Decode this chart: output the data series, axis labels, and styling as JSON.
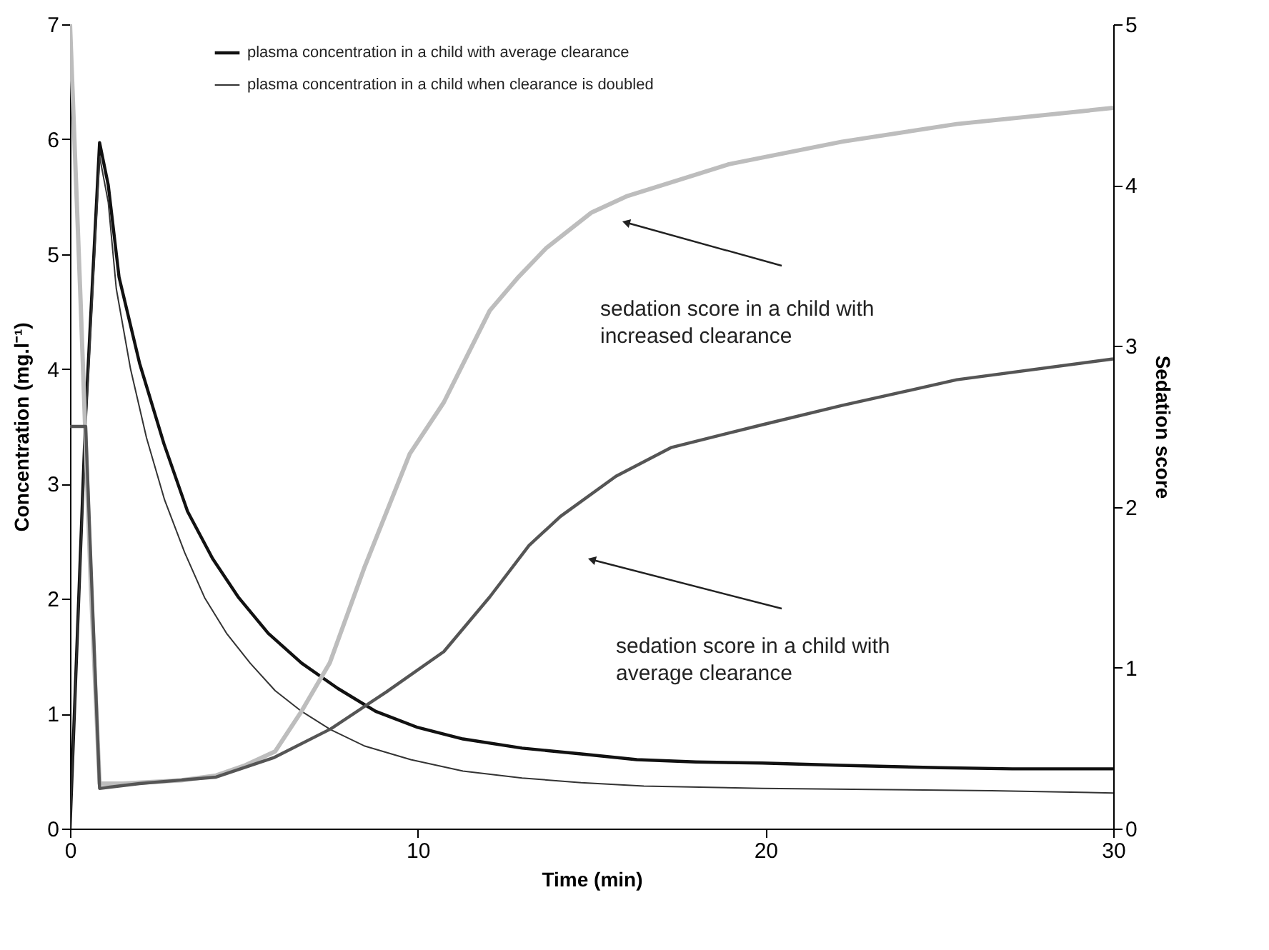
{
  "chart_data": {
    "type": "line",
    "xlabel": "Time (min)",
    "ylabel": "Concentration (mg.l⁻¹)",
    "y2label": "Sedation score",
    "xlim": [
      0,
      30
    ],
    "xticks": [
      0,
      10,
      20,
      30
    ],
    "ylim": [
      0,
      7
    ],
    "yticks": [
      0,
      1,
      2,
      3,
      4,
      5,
      6,
      7
    ],
    "y2lim": [
      0,
      5
    ],
    "y2ticks": [
      0,
      1,
      2,
      3,
      4,
      5
    ],
    "legend": "top left",
    "grid": false,
    "marker": "none",
    "line_style": "solid",
    "series": [
      {
        "name": "plasma concentration in a child with average clearance",
        "color": "#111111",
        "x": [
          0,
          0.45,
          0.85,
          1.1,
          1.41,
          2.0,
          2.7,
          3.38,
          4.1,
          4.85,
          5.7,
          6.66,
          7.7,
          8.79,
          10.0,
          11.3,
          13.0,
          14.7,
          16.3,
          18.0,
          19.9,
          22.2,
          25.0,
          27.1,
          30
        ],
        "values": [
          0,
          3.6,
          5.97,
          5.6,
          4.8,
          4.05,
          3.35,
          2.76,
          2.35,
          2.01,
          1.7,
          1.44,
          1.22,
          1.02,
          0.88,
          0.78,
          0.7,
          0.65,
          0.6,
          0.58,
          0.57,
          0.55,
          0.53,
          0.52,
          0.52
        ]
      },
      {
        "name": "plasma concentration in a child when clearance is doubled",
        "color": "#333333",
        "x": [
          0,
          0.45,
          0.85,
          1.1,
          1.33,
          1.74,
          2.2,
          2.72,
          3.3,
          3.87,
          4.5,
          5.18,
          5.9,
          6.66,
          7.5,
          8.46,
          9.8,
          11.3,
          13.0,
          14.7,
          16.5,
          19.9,
          23.0,
          26.5,
          30
        ],
        "values": [
          0,
          3.5,
          5.85,
          5.45,
          4.7,
          4.0,
          3.4,
          2.86,
          2.4,
          2.01,
          1.7,
          1.44,
          1.2,
          1.02,
          0.86,
          0.72,
          0.6,
          0.5,
          0.44,
          0.4,
          0.37,
          0.35,
          0.34,
          0.33,
          0.31
        ]
      },
      {
        "axis": "y2",
        "color": "#bdbdbd",
        "x": [
          0,
          0.3,
          0.6,
          0.85,
          1.5,
          3.2,
          4.2,
          5.0,
          5.9,
          6.66,
          7.47,
          8.46,
          9.77,
          10.75,
          12.07,
          12.9,
          13.7,
          15.0,
          16.0,
          18.95,
          22.2,
          25.5,
          30
        ],
        "values": [
          5.0,
          3.3,
          1.5,
          0.28,
          0.28,
          0.3,
          0.33,
          0.39,
          0.48,
          0.73,
          1.03,
          1.62,
          2.33,
          2.65,
          3.22,
          3.43,
          3.61,
          3.83,
          3.93,
          4.13,
          4.27,
          4.38,
          4.48
        ]
      },
      {
        "axis": "y2",
        "color": "#555555",
        "x": [
          0,
          0.45,
          0.85,
          2.0,
          4.2,
          5.85,
          7.5,
          9.1,
          10.75,
          12.07,
          13.2,
          14.1,
          15.7,
          17.3,
          19.9,
          22.2,
          25.5,
          30
        ],
        "values": [
          2.5,
          2.5,
          0.25,
          0.28,
          0.32,
          0.44,
          0.62,
          0.85,
          1.1,
          1.44,
          1.76,
          1.94,
          2.19,
          2.37,
          2.51,
          2.63,
          2.79,
          2.92
        ]
      }
    ],
    "annotations": [
      "sedation score in a child with\nincreased clearance",
      "sedation score in a child with\n average clearance"
    ]
  }
}
